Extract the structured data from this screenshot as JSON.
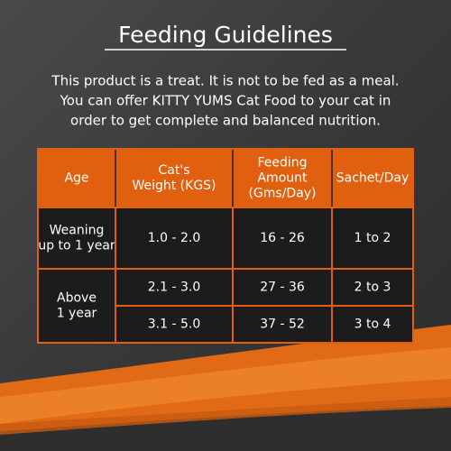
{
  "title": "Feeding Guidelines",
  "intro": [
    "This product is a treat. It is not to be fed as a meal.",
    "You can offer KITTY YUMS Cat Food to your cat in",
    "order to get complete and balanced nutrition."
  ],
  "table": {
    "header": [
      [
        "Age"
      ],
      [
        "Cat's",
        "Weight (KGS)"
      ],
      [
        "Feeding",
        "Amount",
        "(Gms/Day)"
      ],
      [
        "Sachet/Day"
      ]
    ],
    "groups": [
      {
        "age": [
          "Weaning",
          "up to 1 year"
        ],
        "rows": [
          [
            "1.0 - 2.0",
            "16 - 26",
            "1 to 2"
          ]
        ]
      },
      {
        "age": [
          "Above",
          "1 year"
        ],
        "rows": [
          [
            "2.1 - 3.0",
            "27 - 36",
            "2 to 3"
          ],
          [
            "3.1 - 5.0",
            "37 - 52",
            "3 to 4"
          ]
        ]
      }
    ]
  }
}
